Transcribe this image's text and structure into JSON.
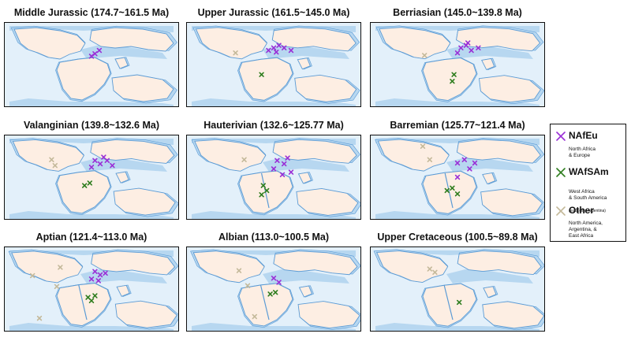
{
  "colors": {
    "ocean_shallow": "#b7d7f0",
    "ocean_deep": "#e3f0fa",
    "land": "#fdeee3",
    "coast": "#5b9bd5",
    "nafeu": "#9a2fd6",
    "wafsam": "#2e7d1e",
    "other": "#c4b99a"
  },
  "panels": [
    {
      "title": "Middle Jurassic (174.7~161.5 Ma)",
      "points": [
        {
          "group": "nafeu",
          "x": 0.52,
          "y": 0.37
        },
        {
          "group": "nafeu",
          "x": 0.545,
          "y": 0.33
        },
        {
          "group": "nafeu",
          "x": 0.5,
          "y": 0.4
        }
      ]
    },
    {
      "title": "Upper Jurassic (161.5~145.0 Ma)",
      "points": [
        {
          "group": "nafeu",
          "x": 0.5,
          "y": 0.3
        },
        {
          "group": "nafeu",
          "x": 0.53,
          "y": 0.27
        },
        {
          "group": "nafeu",
          "x": 0.56,
          "y": 0.3
        },
        {
          "group": "nafeu",
          "x": 0.515,
          "y": 0.35
        },
        {
          "group": "nafeu",
          "x": 0.6,
          "y": 0.33
        },
        {
          "group": "nafeu",
          "x": 0.47,
          "y": 0.33
        },
        {
          "group": "wafsam",
          "x": 0.43,
          "y": 0.62
        },
        {
          "group": "other",
          "x": 0.28,
          "y": 0.36
        }
      ]
    },
    {
      "title": "Berriasian (145.0~139.8 Ma)",
      "points": [
        {
          "group": "nafeu",
          "x": 0.52,
          "y": 0.3
        },
        {
          "group": "nafeu",
          "x": 0.55,
          "y": 0.27
        },
        {
          "group": "nafeu",
          "x": 0.58,
          "y": 0.33
        },
        {
          "group": "nafeu",
          "x": 0.5,
          "y": 0.36
        },
        {
          "group": "nafeu",
          "x": 0.56,
          "y": 0.24
        },
        {
          "group": "nafeu",
          "x": 0.62,
          "y": 0.3
        },
        {
          "group": "wafsam",
          "x": 0.47,
          "y": 0.7
        },
        {
          "group": "wafsam",
          "x": 0.48,
          "y": 0.62
        },
        {
          "group": "other",
          "x": 0.31,
          "y": 0.39
        }
      ]
    },
    {
      "title": "Valanginian (139.8~132.6 Ma)",
      "points": [
        {
          "group": "nafeu",
          "x": 0.52,
          "y": 0.3
        },
        {
          "group": "nafeu",
          "x": 0.55,
          "y": 0.34
        },
        {
          "group": "nafeu",
          "x": 0.59,
          "y": 0.3
        },
        {
          "group": "nafeu",
          "x": 0.5,
          "y": 0.38
        },
        {
          "group": "nafeu",
          "x": 0.62,
          "y": 0.36
        },
        {
          "group": "nafeu",
          "x": 0.57,
          "y": 0.26
        },
        {
          "group": "wafsam",
          "x": 0.46,
          "y": 0.6
        },
        {
          "group": "wafsam",
          "x": 0.49,
          "y": 0.57
        },
        {
          "group": "other",
          "x": 0.27,
          "y": 0.29
        },
        {
          "group": "other",
          "x": 0.29,
          "y": 0.36
        }
      ]
    },
    {
      "title": "Hauterivian (132.6~125.77 Ma)",
      "points": [
        {
          "group": "nafeu",
          "x": 0.52,
          "y": 0.3
        },
        {
          "group": "nafeu",
          "x": 0.56,
          "y": 0.34
        },
        {
          "group": "nafeu",
          "x": 0.5,
          "y": 0.4
        },
        {
          "group": "nafeu",
          "x": 0.58,
          "y": 0.27
        },
        {
          "group": "nafeu",
          "x": 0.6,
          "y": 0.44
        },
        {
          "group": "nafeu",
          "x": 0.55,
          "y": 0.47
        },
        {
          "group": "wafsam",
          "x": 0.44,
          "y": 0.6
        },
        {
          "group": "wafsam",
          "x": 0.46,
          "y": 0.66
        },
        {
          "group": "wafsam",
          "x": 0.43,
          "y": 0.71
        },
        {
          "group": "other",
          "x": 0.33,
          "y": 0.29
        }
      ]
    },
    {
      "title": "Barremian (125.77~121.4 Ma)",
      "points": [
        {
          "group": "nafeu",
          "x": 0.5,
          "y": 0.33
        },
        {
          "group": "nafeu",
          "x": 0.54,
          "y": 0.29
        },
        {
          "group": "nafeu",
          "x": 0.57,
          "y": 0.4
        },
        {
          "group": "nafeu",
          "x": 0.5,
          "y": 0.5
        },
        {
          "group": "nafeu",
          "x": 0.6,
          "y": 0.33
        },
        {
          "group": "wafsam",
          "x": 0.47,
          "y": 0.63
        },
        {
          "group": "wafsam",
          "x": 0.5,
          "y": 0.7
        },
        {
          "group": "wafsam",
          "x": 0.44,
          "y": 0.66
        },
        {
          "group": "other",
          "x": 0.3,
          "y": 0.13
        },
        {
          "group": "other",
          "x": 0.34,
          "y": 0.29
        }
      ]
    },
    {
      "title": "Aptian (121.4~113.0 Ma)",
      "points": [
        {
          "group": "nafeu",
          "x": 0.52,
          "y": 0.29
        },
        {
          "group": "nafeu",
          "x": 0.55,
          "y": 0.33
        },
        {
          "group": "nafeu",
          "x": 0.5,
          "y": 0.38
        },
        {
          "group": "nafeu",
          "x": 0.58,
          "y": 0.31
        },
        {
          "group": "nafeu",
          "x": 0.54,
          "y": 0.4
        },
        {
          "group": "wafsam",
          "x": 0.48,
          "y": 0.6
        },
        {
          "group": "wafsam",
          "x": 0.5,
          "y": 0.64
        },
        {
          "group": "wafsam",
          "x": 0.52,
          "y": 0.58
        },
        {
          "group": "other",
          "x": 0.32,
          "y": 0.24
        },
        {
          "group": "other",
          "x": 0.3,
          "y": 0.47
        },
        {
          "group": "other",
          "x": 0.16,
          "y": 0.34
        },
        {
          "group": "other",
          "x": 0.2,
          "y": 0.85
        }
      ]
    },
    {
      "title": "Albian (113.0~100.5 Ma)",
      "points": [
        {
          "group": "nafeu",
          "x": 0.5,
          "y": 0.37
        },
        {
          "group": "nafeu",
          "x": 0.53,
          "y": 0.42
        },
        {
          "group": "wafsam",
          "x": 0.48,
          "y": 0.56
        },
        {
          "group": "wafsam",
          "x": 0.51,
          "y": 0.54
        },
        {
          "group": "other",
          "x": 0.3,
          "y": 0.28
        },
        {
          "group": "other",
          "x": 0.35,
          "y": 0.46
        },
        {
          "group": "other",
          "x": 0.39,
          "y": 0.83
        }
      ]
    },
    {
      "title": "Upper Cretaceous (100.5~89.8 Ma)",
      "points": [
        {
          "group": "wafsam",
          "x": 0.51,
          "y": 0.66
        },
        {
          "group": "other",
          "x": 0.34,
          "y": 0.26
        },
        {
          "group": "other",
          "x": 0.37,
          "y": 0.3
        }
      ]
    }
  ],
  "legend": {
    "items": [
      {
        "key": "nafeu",
        "name": "NAfEu",
        "desc": "North Africa\n& Europe",
        "note": ""
      },
      {
        "key": "wafsam",
        "name": "WAfSAm",
        "desc": "West Africa\n& South America",
        "note": "(excluding Argentina)"
      },
      {
        "key": "other",
        "name": "Other",
        "desc": "North America,\nArgentina, &\nEast Africa",
        "note": ""
      }
    ]
  }
}
